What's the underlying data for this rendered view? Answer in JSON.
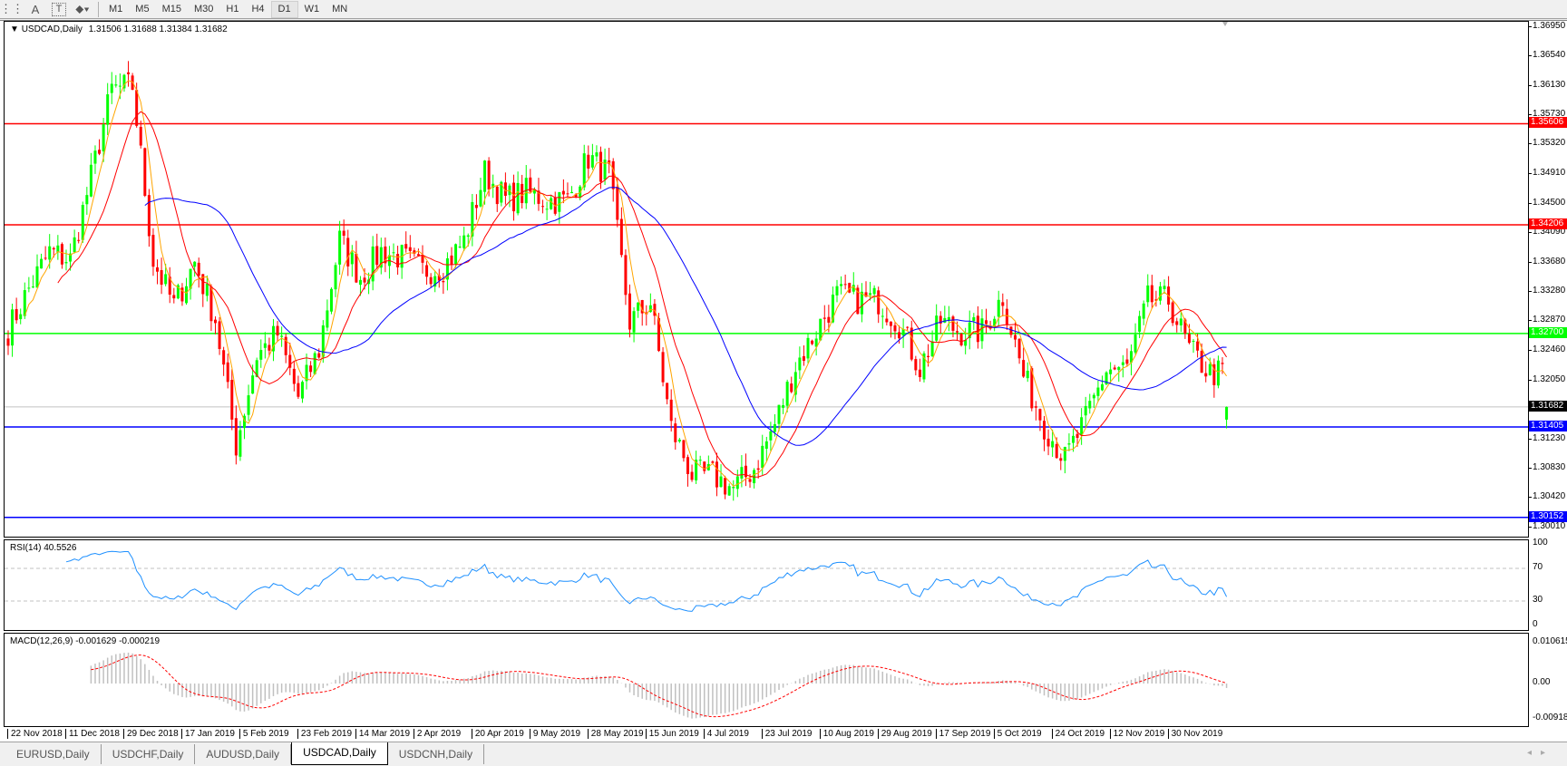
{
  "toolbar": {
    "icons": [
      "period-separators-icon",
      "text-A-icon",
      "text-label-icon",
      "shapes-dropdown-icon"
    ],
    "timeframes": [
      "M1",
      "M5",
      "M15",
      "M30",
      "H1",
      "H4",
      "D1",
      "W1",
      "MN"
    ],
    "selected_timeframe": "D1"
  },
  "chart": {
    "header": "USDCAD,Daily",
    "ohlc": "1.31506 1.31688 1.31384 1.31682",
    "current_price": "1.31682"
  },
  "chart_data": {
    "type": "candlestick",
    "symbol": "USDCAD",
    "timeframe": "Daily",
    "ylim": [
      1.3001,
      1.3695
    ],
    "price_ticks": [
      "1.36950",
      "1.36540",
      "1.36130",
      "1.35730",
      "1.35320",
      "1.34910",
      "1.34500",
      "1.34090",
      "1.33680",
      "1.33280",
      "1.32870",
      "1.32460",
      "1.32050",
      "1.31230",
      "1.30830",
      "1.30420",
      "1.30010"
    ],
    "date_ticks": [
      "22 Nov 2018",
      "11 Dec 2018",
      "29 Dec 2018",
      "17 Jan 2019",
      "5 Feb 2019",
      "23 Feb 2019",
      "14 Mar 2019",
      "2 Apr 2019",
      "20 Apr 2019",
      "9 May 2019",
      "28 May 2019",
      "15 Jun 2019",
      "4 Jul 2019",
      "23 Jul 2019",
      "10 Aug 2019",
      "29 Aug 2019",
      "17 Sep 2019",
      "5 Oct 2019",
      "24 Oct 2019",
      "12 Nov 2019",
      "30 Nov 2019"
    ],
    "weekly_close_approx": [
      1.3274,
      1.3332,
      1.3383,
      1.3372,
      1.3486,
      1.3608,
      1.3613,
      1.3371,
      1.3309,
      1.3369,
      1.329,
      1.3115,
      1.324,
      1.3269,
      1.3182,
      1.3247,
      1.34,
      1.3348,
      1.3384,
      1.3375,
      1.3357,
      1.3362,
      1.3398,
      1.3493,
      1.3455,
      1.3466,
      1.3455,
      1.3454,
      1.3514,
      1.349,
      1.3286,
      1.3313,
      1.3139,
      1.3075,
      1.3073,
      1.3055,
      1.3083,
      1.3144,
      1.3225,
      1.3274,
      1.3322,
      1.3317,
      1.3316,
      1.3284,
      1.3222,
      1.3287,
      1.3272,
      1.3273,
      1.3322,
      1.3211,
      1.3144,
      1.3095,
      1.315,
      1.322,
      1.3221,
      1.3316,
      1.3316,
      1.3247,
      1.3215
    ],
    "last_candle": {
      "open": 1.31506,
      "high": 1.31688,
      "low": 1.31384,
      "close": 1.31682
    },
    "colors": {
      "bull": "#00ff00",
      "bear": "#ff0000",
      "ma_fast": "#ffa500",
      "ma_mid": "#ff0000",
      "ma_slow": "#0000ff"
    },
    "horizontal_levels": [
      {
        "price": "1.35606",
        "color": "#ff0000"
      },
      {
        "price": "1.34206",
        "color": "#ff0000"
      },
      {
        "price": "1.32700",
        "color": "#00ff00"
      },
      {
        "price": "1.31682",
        "color": "#c0c0c0",
        "tag_color": "#000000"
      },
      {
        "price": "1.31405",
        "color": "#0000ff"
      },
      {
        "price": "1.30152",
        "color": "#0000ff"
      }
    ],
    "rsi": {
      "title": "RSI(14) 40.5526",
      "period": 14,
      "levels": [
        70,
        30
      ],
      "ticks": [
        "100",
        "70",
        "30",
        "0"
      ],
      "color": "#1e90ff"
    },
    "macd": {
      "title": "MACD(12,26,9) -0.001629 -0.000219",
      "ticks": [
        "0.010615",
        "0.00",
        "-0.009181"
      ],
      "range": [
        -0.009181,
        0.010615
      ],
      "hist_color": "#c0c0c0",
      "signal_color": "#ff0000"
    }
  },
  "tabs": [
    {
      "label": "EURUSD,Daily",
      "active": false
    },
    {
      "label": "USDCHF,Daily",
      "active": false
    },
    {
      "label": "AUDUSD,Daily",
      "active": false
    },
    {
      "label": "USDCAD,Daily",
      "active": true
    },
    {
      "label": "USDCNH,Daily",
      "active": false
    }
  ]
}
